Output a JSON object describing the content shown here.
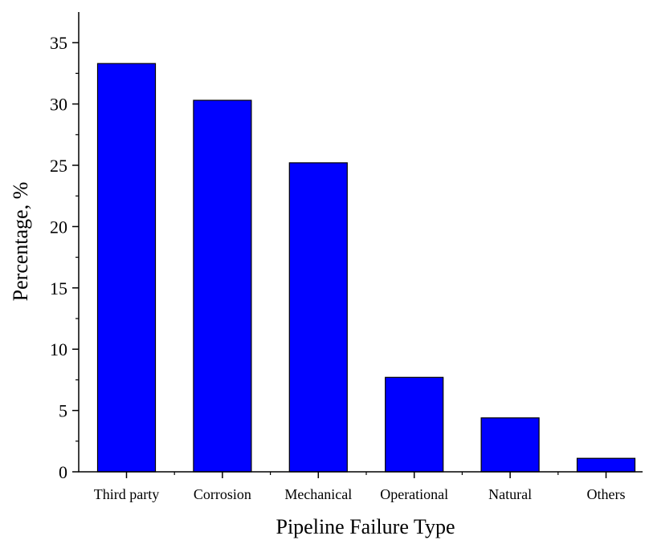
{
  "chart_data": {
    "type": "bar",
    "title": "",
    "xlabel": "Pipeline Failure Type",
    "ylabel": "Percentage, %",
    "categories": [
      "Third party",
      "Corrosion",
      "Mechanical",
      "Operational",
      "Natural",
      "Others"
    ],
    "values": [
      33.3,
      30.3,
      25.2,
      7.7,
      4.4,
      1.1
    ],
    "ylim": [
      0,
      37.5
    ],
    "yticks": [
      "0",
      "5",
      "10",
      "15",
      "20",
      "25",
      "30",
      "35"
    ],
    "grid": false,
    "legend": "none",
    "bar_color": "#0000FF",
    "bar_edge_color": "#000000"
  }
}
